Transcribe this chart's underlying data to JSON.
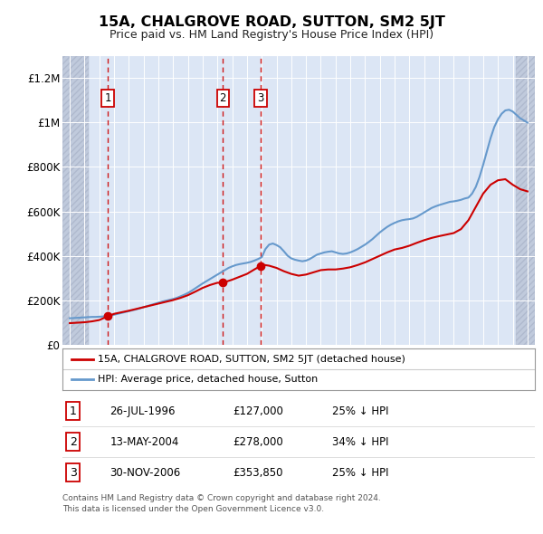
{
  "title": "15A, CHALGROVE ROAD, SUTTON, SM2 5JT",
  "subtitle": "Price paid vs. HM Land Registry's House Price Index (HPI)",
  "sale_dates": [
    1996.57,
    2004.37,
    2006.92
  ],
  "sale_prices": [
    127000,
    278000,
    353850
  ],
  "sale_labels": [
    "1",
    "2",
    "3"
  ],
  "hpi_years": [
    1994.0,
    1994.25,
    1994.5,
    1994.75,
    1995.0,
    1995.25,
    1995.5,
    1995.75,
    1996.0,
    1996.25,
    1996.5,
    1996.75,
    1997.0,
    1997.25,
    1997.5,
    1997.75,
    1998.0,
    1998.25,
    1998.5,
    1998.75,
    1999.0,
    1999.25,
    1999.5,
    1999.75,
    2000.0,
    2000.25,
    2000.5,
    2000.75,
    2001.0,
    2001.25,
    2001.5,
    2001.75,
    2002.0,
    2002.25,
    2002.5,
    2002.75,
    2003.0,
    2003.25,
    2003.5,
    2003.75,
    2004.0,
    2004.25,
    2004.5,
    2004.75,
    2005.0,
    2005.25,
    2005.5,
    2005.75,
    2006.0,
    2006.25,
    2006.5,
    2006.75,
    2007.0,
    2007.25,
    2007.5,
    2007.75,
    2008.0,
    2008.25,
    2008.5,
    2008.75,
    2009.0,
    2009.25,
    2009.5,
    2009.75,
    2010.0,
    2010.25,
    2010.5,
    2010.75,
    2011.0,
    2011.25,
    2011.5,
    2011.75,
    2012.0,
    2012.25,
    2012.5,
    2012.75,
    2013.0,
    2013.25,
    2013.5,
    2013.75,
    2014.0,
    2014.25,
    2014.5,
    2014.75,
    2015.0,
    2015.25,
    2015.5,
    2015.75,
    2016.0,
    2016.25,
    2016.5,
    2016.75,
    2017.0,
    2017.25,
    2017.5,
    2017.75,
    2018.0,
    2018.25,
    2018.5,
    2018.75,
    2019.0,
    2019.25,
    2019.5,
    2019.75,
    2020.0,
    2020.25,
    2020.5,
    2020.75,
    2021.0,
    2021.25,
    2021.5,
    2021.75,
    2022.0,
    2022.25,
    2022.5,
    2022.75,
    2023.0,
    2023.25,
    2023.5,
    2023.75,
    2024.0,
    2024.25,
    2024.5,
    2024.75,
    2025.0
  ],
  "hpi_values": [
    118000,
    119000,
    120000,
    121000,
    122000,
    123000,
    124000,
    124000,
    125000,
    126000,
    128000,
    131000,
    134000,
    138000,
    142000,
    146000,
    150000,
    154000,
    158000,
    163000,
    168000,
    173000,
    178000,
    183000,
    188000,
    193000,
    197000,
    201000,
    205000,
    210000,
    217000,
    224000,
    232000,
    242000,
    253000,
    264000,
    275000,
    285000,
    295000,
    305000,
    315000,
    325000,
    335000,
    345000,
    352000,
    358000,
    362000,
    365000,
    368000,
    372000,
    378000,
    385000,
    393000,
    430000,
    450000,
    455000,
    448000,
    438000,
    420000,
    400000,
    388000,
    382000,
    378000,
    375000,
    378000,
    385000,
    395000,
    405000,
    410000,
    415000,
    418000,
    420000,
    415000,
    410000,
    408000,
    410000,
    415000,
    422000,
    430000,
    440000,
    450000,
    462000,
    475000,
    490000,
    505000,
    518000,
    530000,
    540000,
    548000,
    555000,
    560000,
    563000,
    565000,
    568000,
    575000,
    585000,
    595000,
    605000,
    615000,
    622000,
    628000,
    633000,
    638000,
    643000,
    645000,
    648000,
    652000,
    658000,
    662000,
    680000,
    710000,
    755000,
    810000,
    870000,
    930000,
    980000,
    1015000,
    1040000,
    1055000,
    1058000,
    1050000,
    1035000,
    1020000,
    1010000,
    1000000
  ],
  "price_years": [
    1994.0,
    1995.0,
    1995.5,
    1996.0,
    1996.57,
    1997.0,
    1997.5,
    1998.0,
    1998.5,
    1999.0,
    1999.5,
    2000.0,
    2000.5,
    2001.0,
    2001.5,
    2002.0,
    2002.5,
    2003.0,
    2003.5,
    2004.0,
    2004.37,
    2005.0,
    2005.5,
    2006.0,
    2006.5,
    2006.92,
    2007.0,
    2007.5,
    2008.0,
    2008.5,
    2009.0,
    2009.5,
    2010.0,
    2010.5,
    2011.0,
    2011.5,
    2012.0,
    2012.5,
    2013.0,
    2013.5,
    2014.0,
    2014.5,
    2015.0,
    2015.5,
    2016.0,
    2016.5,
    2017.0,
    2017.5,
    2018.0,
    2018.5,
    2019.0,
    2019.5,
    2020.0,
    2020.5,
    2021.0,
    2021.5,
    2022.0,
    2022.5,
    2023.0,
    2023.5,
    2024.0,
    2024.5,
    2025.0
  ],
  "price_values": [
    96000,
    100000,
    104000,
    110000,
    127000,
    138000,
    145000,
    152000,
    160000,
    168000,
    176000,
    184000,
    192000,
    200000,
    210000,
    222000,
    238000,
    255000,
    268000,
    278000,
    278000,
    292000,
    305000,
    318000,
    338000,
    353850,
    360000,
    355000,
    345000,
    330000,
    318000,
    310000,
    315000,
    325000,
    335000,
    338000,
    338000,
    342000,
    348000,
    358000,
    370000,
    385000,
    400000,
    415000,
    428000,
    435000,
    445000,
    458000,
    470000,
    480000,
    488000,
    495000,
    502000,
    520000,
    560000,
    620000,
    680000,
    720000,
    740000,
    745000,
    720000,
    700000,
    690000
  ],
  "xlim": [
    1993.5,
    2025.5
  ],
  "ylim": [
    0,
    1300000
  ],
  "yticks": [
    0,
    200000,
    400000,
    600000,
    800000,
    1000000,
    1200000
  ],
  "ytick_labels": [
    "£0",
    "£200K",
    "£400K",
    "£600K",
    "£800K",
    "£1M",
    "£1.2M"
  ],
  "xticks": [
    1994,
    1995,
    1996,
    1997,
    1998,
    1999,
    2000,
    2001,
    2002,
    2003,
    2004,
    2005,
    2006,
    2007,
    2008,
    2009,
    2010,
    2011,
    2012,
    2013,
    2014,
    2015,
    2016,
    2017,
    2018,
    2019,
    2020,
    2021,
    2022,
    2023,
    2024,
    2025
  ],
  "hatch_xstart": 1993.5,
  "hatch_xend1": 1995.3,
  "hatch_xstart2": 2024.2,
  "hatch_xend2": 2025.5,
  "bg_color": "#dce6f5",
  "hatch_color": "#c0cadc",
  "red_color": "#cc0000",
  "blue_color": "#6699cc",
  "grid_color": "#ffffff",
  "legend_entries": [
    "15A, CHALGROVE ROAD, SUTTON, SM2 5JT (detached house)",
    "HPI: Average price, detached house, Sutton"
  ],
  "table_data": [
    [
      "1",
      "26-JUL-1996",
      "£127,000",
      "25% ↓ HPI"
    ],
    [
      "2",
      "13-MAY-2004",
      "£278,000",
      "34% ↓ HPI"
    ],
    [
      "3",
      "30-NOV-2006",
      "£353,850",
      "25% ↓ HPI"
    ]
  ],
  "footer": "Contains HM Land Registry data © Crown copyright and database right 2024.\nThis data is licensed under the Open Government Licence v3.0."
}
